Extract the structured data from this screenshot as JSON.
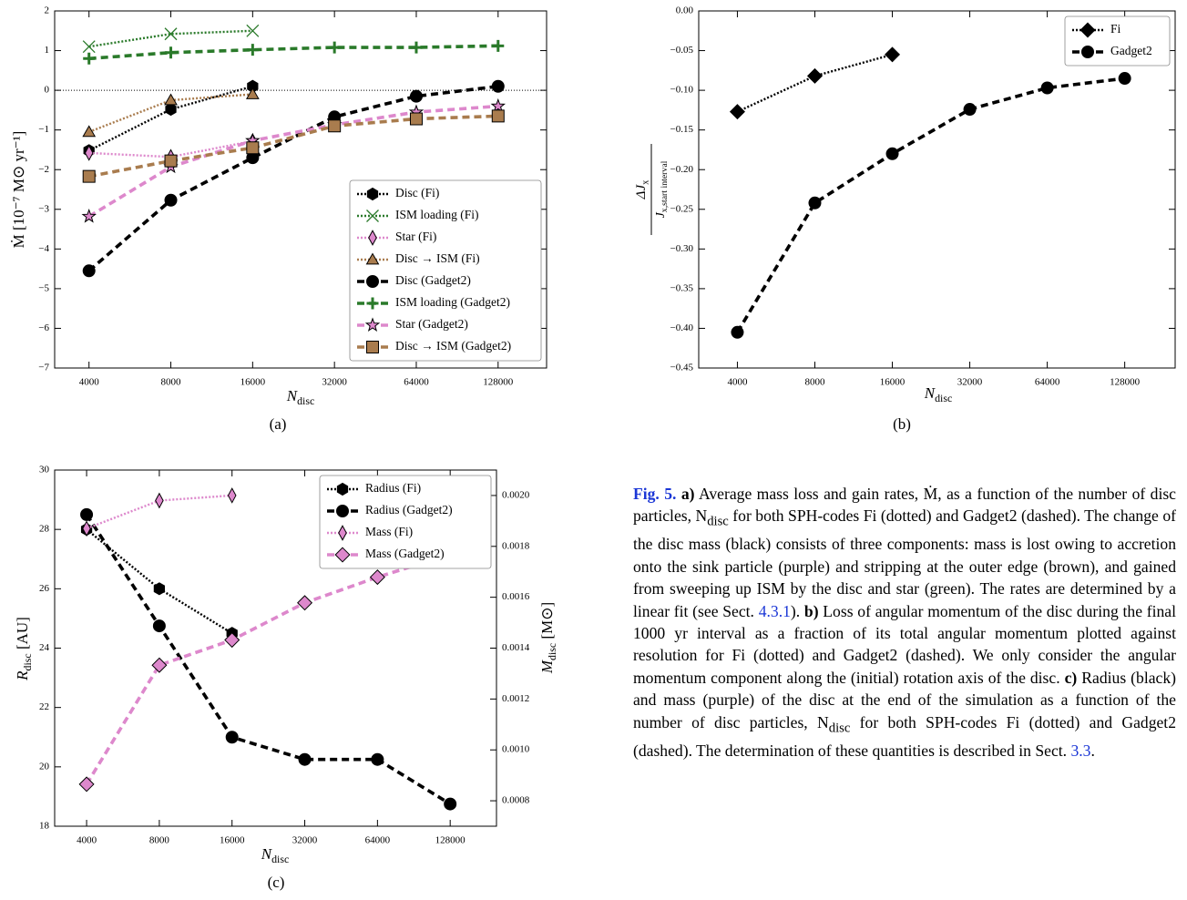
{
  "chart_data": [
    {
      "type": "line",
      "label": "(a)",
      "xscale": "log",
      "x": [
        4000,
        8000,
        16000,
        32000,
        64000,
        128000
      ],
      "xlim": [
        2990,
        193000
      ],
      "xticks": [
        4000,
        8000,
        16000,
        32000,
        64000,
        128000
      ],
      "ylim": [
        -7,
        2
      ],
      "yticks": [
        {
          "value": -7,
          "label": "−7"
        },
        {
          "value": -6,
          "label": "−6"
        },
        {
          "value": -5,
          "label": "−5"
        },
        {
          "value": -4,
          "label": "−4"
        },
        {
          "value": -3,
          "label": "−3"
        },
        {
          "value": -2,
          "label": "−2"
        },
        {
          "value": -1,
          "label": "−1"
        },
        0,
        1,
        2
      ],
      "xlabel": {
        "main": "N",
        "sub": "disc"
      },
      "ylabel": "Ṁ [10⁻⁷ M⊙ yr⁻¹]",
      "hline": 0,
      "legend": "lower right",
      "series": [
        {
          "name": "Disc (Fi)",
          "color": "#000000",
          "marker": "hexagon",
          "linestyle": "dotted",
          "values": [
            -1.52,
            -0.48,
            0.1,
            null,
            null,
            null
          ]
        },
        {
          "name": "ISM loading (Fi)",
          "color": "#2a7a2a",
          "marker": "x",
          "linestyle": "dotted",
          "values": [
            1.1,
            1.42,
            1.5,
            null,
            null,
            null
          ]
        },
        {
          "name": "Star (Fi)",
          "color": "#dd88cc",
          "marker": "thin_diamond",
          "linestyle": "dotted",
          "values": [
            -1.58,
            -1.68,
            -1.28,
            null,
            null,
            null
          ]
        },
        {
          "name": "Disc → ISM (Fi)",
          "color": "#a97c4e",
          "marker": "triangle",
          "linestyle": "dotted",
          "values": [
            -1.05,
            -0.25,
            -0.1,
            null,
            null,
            null
          ]
        },
        {
          "name": "Disc (Gadget2)",
          "color": "#000000",
          "marker": "circle",
          "linestyle": "dashed",
          "values": [
            -4.55,
            -2.77,
            -1.7,
            -0.67,
            -0.15,
            0.1
          ]
        },
        {
          "name": "ISM loading (Gadget2)",
          "color": "#2a7a2a",
          "marker": "plus",
          "linestyle": "dashed",
          "values": [
            0.8,
            0.95,
            1.02,
            1.08,
            1.08,
            1.12
          ]
        },
        {
          "name": "Star (Gadget2)",
          "color": "#dd88cc",
          "marker": "star",
          "linestyle": "dashed",
          "values": [
            -3.18,
            -1.93,
            -1.27,
            -0.87,
            -0.55,
            -0.4
          ]
        },
        {
          "name": "Disc → ISM (Gadget2)",
          "color": "#a97c4e",
          "marker": "square",
          "linestyle": "dashed",
          "values": [
            -2.17,
            -1.78,
            -1.45,
            -0.9,
            -0.72,
            -0.65
          ]
        }
      ]
    },
    {
      "type": "line",
      "label": "(b)",
      "xscale": "log",
      "x": [
        4000,
        8000,
        16000,
        32000,
        64000,
        128000
      ],
      "xlim": [
        2830,
        201000
      ],
      "xticks": [
        4000,
        8000,
        16000,
        32000,
        64000,
        128000
      ],
      "ylim": [
        -0.45,
        0
      ],
      "yticks": [
        {
          "value": -0.45,
          "label": "−0.45"
        },
        {
          "value": -0.4,
          "label": "−0.40"
        },
        {
          "value": -0.35,
          "label": "−0.35"
        },
        {
          "value": -0.3,
          "label": "−0.30"
        },
        {
          "value": -0.25,
          "label": "−0.25"
        },
        {
          "value": -0.2,
          "label": "−0.20"
        },
        {
          "value": -0.15,
          "label": "−0.15"
        },
        {
          "value": -0.1,
          "label": "−0.10"
        },
        {
          "value": -0.05,
          "label": "−0.05"
        },
        {
          "value": 0,
          "label": "0.00"
        }
      ],
      "xlabel": {
        "main": "N",
        "sub": "disc"
      },
      "ylabel": {
        "num": {
          "main": "ΔJ",
          "sub": "x"
        },
        "den": {
          "main": "J",
          "sub": "x,start interval"
        }
      },
      "legend": "upper right",
      "series": [
        {
          "name": "Fi",
          "color": "#000000",
          "marker": "diamond",
          "linestyle": "dotted",
          "values": [
            -0.127,
            -0.082,
            -0.055,
            null,
            null,
            null
          ]
        },
        {
          "name": "Gadget2",
          "color": "#000000",
          "marker": "circle",
          "linestyle": "dashed",
          "values": [
            -0.405,
            -0.242,
            -0.18,
            -0.124,
            -0.097,
            -0.085
          ]
        }
      ]
    },
    {
      "type": "line",
      "label": "(c)",
      "xscale": "log",
      "x": [
        4000,
        8000,
        16000,
        32000,
        64000,
        128000
      ],
      "xlim": [
        2950,
        199000
      ],
      "xticks": [
        4000,
        8000,
        16000,
        32000,
        64000,
        128000
      ],
      "ylim": [
        18,
        30
      ],
      "yticks": [
        18,
        20,
        22,
        24,
        26,
        28,
        30
      ],
      "y2lim": [
        0.0007,
        0.0021
      ],
      "y2ticks": [
        0.0008,
        {
          "value": 0.001,
          "label": "0.0010"
        },
        0.0012,
        0.0014,
        0.0016,
        0.0018,
        {
          "value": 0.002,
          "label": "0.0020"
        }
      ],
      "xlabel": {
        "main": "N",
        "sub": "disc"
      },
      "ylabel": {
        "main": "R",
        "sub": "disc",
        "unit": " [AU]"
      },
      "y2label": {
        "main": "M",
        "sub": "disc",
        "unit": " [M⊙]"
      },
      "legend": "upper right",
      "series": [
        {
          "name": "Radius (Fi)",
          "color": "#000000",
          "marker": "hexagon",
          "linestyle": "dotted",
          "values": [
            28.0,
            26.0,
            24.5,
            null,
            null,
            null
          ]
        },
        {
          "name": "Radius (Gadget2)",
          "color": "#000000",
          "marker": "circle",
          "linestyle": "dashed",
          "values": [
            28.5,
            24.75,
            21.0,
            20.25,
            20.25,
            18.75
          ]
        },
        {
          "name": "Mass (Fi)",
          "color": "#dd88cc",
          "marker": "thin_diamond",
          "linestyle": "dotted",
          "axis": "y2",
          "values": [
            0.00187,
            0.00198,
            0.002,
            null,
            null,
            null
          ]
        },
        {
          "name": "Mass (Gadget2)",
          "color": "#dd88cc",
          "marker": "diamond",
          "linestyle": "dashed",
          "axis": "y2",
          "values": [
            0.000865,
            0.001333,
            0.001432,
            0.001578,
            0.001679,
            0.001768
          ]
        }
      ]
    }
  ],
  "caption": [
    "Fig. 5.",
    " a)",
    " Average mass loss and gain rates, Ṁ, as a function of the number of disc particles, N",
    "disc",
    " for both SPH-codes Fi (dotted) and Gadget2 (dashed). The change of the disc mass (black) consists of three components: mass is lost owing to accretion onto the sink particle (purple) and stripping at the outer edge (brown), and gained from sweeping up ISM by the disc and star (green). The rates are determined by a linear fit (see Sect. ",
    "4.3.1",
    ").",
    " b)",
    " Loss of angular momentum of the disc during the final 1000 yr interval as a fraction of its total angular momentum plotted against resolution for Fi (dotted) and Gadget2 (dashed). We only consider the angular momentum component along the (initial) rotation axis of the disc.",
    " c)",
    " Radius (black) and mass (purple) of the disc at the end of the simulation as a function of the number of disc particles, N",
    "disc",
    " for both SPH-codes Fi (dotted) and Gadget2 (dashed). The determination of these quantities is described in Sect. ",
    "3.3",
    "."
  ]
}
